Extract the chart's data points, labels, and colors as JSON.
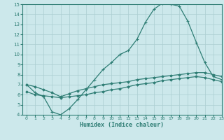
{
  "xlabel": "Humidex (Indice chaleur)",
  "xlim": [
    -0.5,
    23
  ],
  "ylim": [
    4,
    15
  ],
  "yticks": [
    4,
    5,
    6,
    7,
    8,
    9,
    10,
    11,
    12,
    13,
    14,
    15
  ],
  "xticks": [
    0,
    1,
    2,
    3,
    4,
    5,
    6,
    7,
    8,
    9,
    10,
    11,
    12,
    13,
    14,
    15,
    16,
    17,
    18,
    19,
    20,
    21,
    22,
    23
  ],
  "background_color": "#cce8eb",
  "grid_color": "#aacdd1",
  "line_color": "#2e7d74",
  "line1_x": [
    0,
    1,
    2,
    3,
    4,
    5,
    6,
    7,
    8,
    9,
    10,
    11,
    12,
    13,
    14,
    15,
    16,
    17,
    18,
    19,
    20,
    21,
    22,
    23
  ],
  "line1_y": [
    7.0,
    6.2,
    5.8,
    4.3,
    4.0,
    4.6,
    5.5,
    6.5,
    7.5,
    8.5,
    9.2,
    10.0,
    10.4,
    11.5,
    13.2,
    14.5,
    15.1,
    15.0,
    14.8,
    13.3,
    11.2,
    9.2,
    7.8,
    7.5
  ],
  "line1_marker": "+",
  "line2_x": [
    0,
    1,
    2,
    3,
    4,
    5,
    6,
    7,
    8,
    9,
    10,
    11,
    12,
    13,
    14,
    15,
    16,
    17,
    18,
    19,
    20,
    21,
    22,
    23
  ],
  "line2_y": [
    7.0,
    6.8,
    6.5,
    6.2,
    5.8,
    6.1,
    6.4,
    6.6,
    6.8,
    7.0,
    7.1,
    7.2,
    7.3,
    7.5,
    7.6,
    7.7,
    7.8,
    7.9,
    8.0,
    8.1,
    8.2,
    8.2,
    8.0,
    7.8
  ],
  "line2_marker": "D",
  "line3_x": [
    0,
    1,
    2,
    3,
    4,
    5,
    6,
    7,
    8,
    9,
    10,
    11,
    12,
    13,
    14,
    15,
    16,
    17,
    18,
    19,
    20,
    21,
    22,
    23
  ],
  "line3_y": [
    6.3,
    6.0,
    5.9,
    5.8,
    5.7,
    5.8,
    5.9,
    6.0,
    6.2,
    6.3,
    6.5,
    6.6,
    6.8,
    7.0,
    7.1,
    7.2,
    7.4,
    7.5,
    7.6,
    7.7,
    7.8,
    7.7,
    7.5,
    7.3
  ],
  "line3_marker": "D"
}
